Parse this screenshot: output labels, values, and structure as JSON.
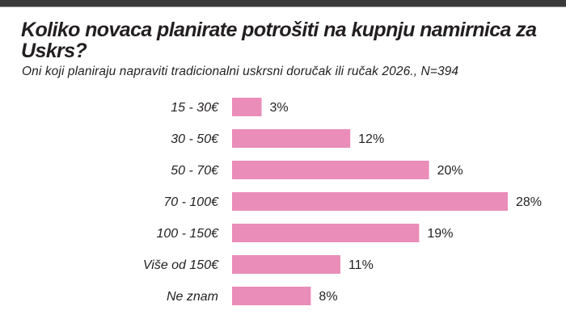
{
  "chart_data": {
    "type": "bar",
    "orientation": "horizontal",
    "title": "Koliko novaca planirate potrošiti na kupnju namirnica za Uskrs?",
    "subtitle": "Oni koji planiraju napraviti tradicionalni uskrsni doručak ili ručak 2026., N=394",
    "categories": [
      "15 - 30€",
      "30 - 50€",
      "50 - 70€",
      "70 - 100€",
      "100 - 150€",
      "Više od 150€",
      "Ne znam"
    ],
    "values": [
      3,
      12,
      20,
      28,
      19,
      11,
      8
    ],
    "value_labels": [
      "3%",
      "12%",
      "20%",
      "28%",
      "19%",
      "11%",
      "8%"
    ],
    "unit": "%",
    "xlim": [
      0,
      28
    ],
    "grid": false,
    "bar_color": "#ea8db8"
  }
}
